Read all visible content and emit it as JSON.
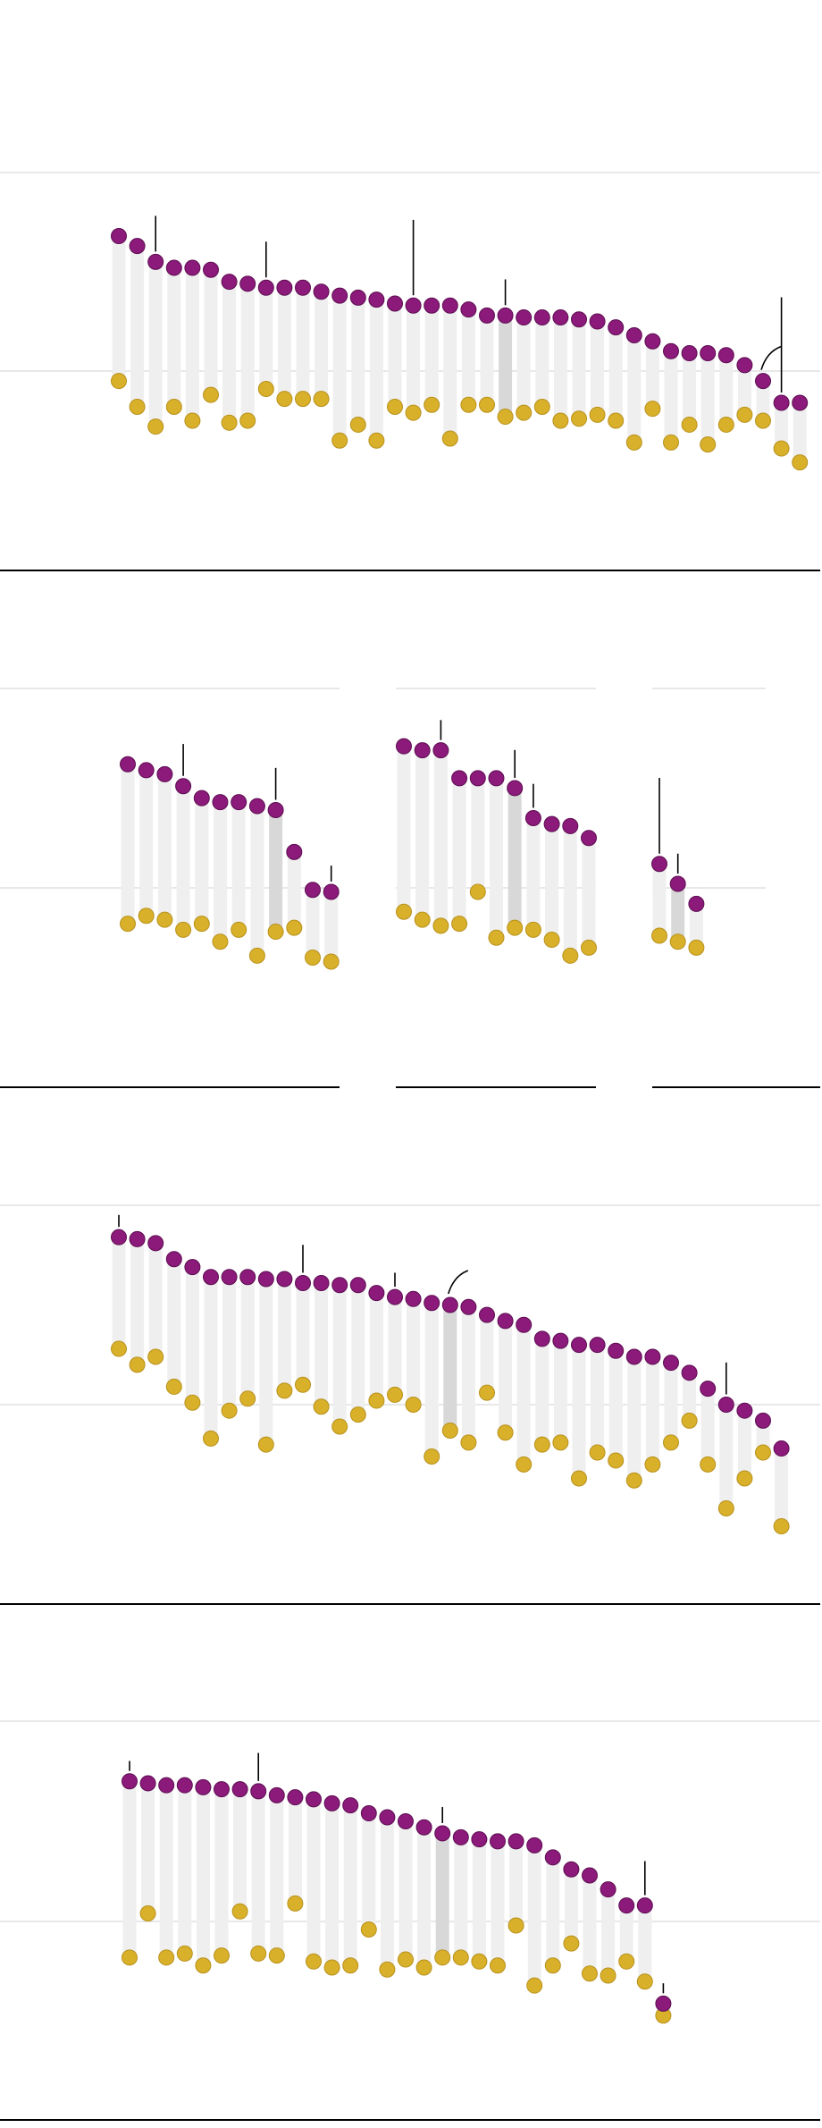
{
  "colors": {
    "purple": "#8b1a7a",
    "purple_stroke": "#5e0e52",
    "gold": "#d9b02a",
    "gold_stroke": "#b8921d",
    "bar": "#efefef",
    "bar_highlight": "#d8d8d8",
    "gridline": "#d0d0d0",
    "baseline": "#000000",
    "annotation": "#000000"
  },
  "chart_data": [
    {
      "type": "dot-pair",
      "title": "",
      "xlabel": "",
      "ylabel": "",
      "ylim": [
        -1,
        2
      ],
      "grid": true,
      "legend": "none",
      "highlight_index": 21,
      "series": [
        {
          "name": "",
          "color": "purple",
          "values": [
            1.68,
            1.63,
            1.55,
            1.52,
            1.52,
            1.51,
            1.45,
            1.44,
            1.42,
            1.42,
            1.42,
            1.4,
            1.38,
            1.37,
            1.36,
            1.34,
            1.33,
            1.33,
            1.33,
            1.31,
            1.28,
            1.28,
            1.27,
            1.27,
            1.27,
            1.26,
            1.25,
            1.22,
            1.18,
            1.15,
            1.1,
            1.09,
            1.09,
            1.08,
            1.03,
            0.95,
            0.84,
            0.84
          ]
        },
        {
          "name": "",
          "color": "gold",
          "values": [
            0.95,
            0.82,
            0.72,
            0.82,
            0.75,
            0.88,
            0.74,
            0.75,
            0.91,
            0.86,
            0.86,
            0.86,
            0.65,
            0.73,
            0.65,
            0.82,
            0.79,
            0.83,
            0.66,
            0.83,
            0.83,
            0.77,
            0.79,
            0.82,
            0.75,
            0.76,
            0.78,
            0.75,
            0.64,
            0.81,
            0.64,
            0.73,
            0.63,
            0.73,
            0.78,
            0.75,
            0.61,
            0.54
          ]
        }
      ],
      "annotations": [
        {
          "index": 2,
          "length": 0.18
        },
        {
          "index": 8,
          "length": 0.18
        },
        {
          "index": 16,
          "length": 0.38
        },
        {
          "index": 21,
          "length": 0.13
        },
        {
          "index": 36,
          "length": 0.48
        }
      ],
      "curved_note": {
        "index": 35
      }
    },
    {
      "type": "dot-pair",
      "title": "",
      "xlabel": "",
      "ylabel": "",
      "ylim": [
        -1,
        2
      ],
      "grid": true,
      "legend": "none",
      "highlight_index": 8,
      "series": [
        {
          "name": "",
          "color": "purple",
          "values": [
            1.62,
            1.59,
            1.57,
            1.51,
            1.45,
            1.43,
            1.43,
            1.41,
            1.39,
            1.18,
            0.99,
            0.98
          ]
        },
        {
          "name": "",
          "color": "gold",
          "values": [
            0.82,
            0.86,
            0.84,
            0.79,
            0.82,
            0.73,
            0.79,
            0.66,
            0.78,
            0.8,
            0.65,
            0.63
          ]
        }
      ],
      "annotations": [
        {
          "index": 3,
          "length": 0.16
        },
        {
          "index": 8,
          "length": 0.16
        },
        {
          "index": 11,
          "length": 0.08
        }
      ]
    },
    {
      "type": "dot-pair",
      "title": "",
      "xlabel": "",
      "ylabel": "",
      "ylim": [
        -1,
        2
      ],
      "grid": true,
      "legend": "none",
      "highlight_index": 6,
      "series": [
        {
          "name": "",
          "color": "purple",
          "values": [
            1.71,
            1.69,
            1.69,
            1.55,
            1.55,
            1.55,
            1.5,
            1.35,
            1.32,
            1.31,
            1.25
          ]
        },
        {
          "name": "",
          "color": "gold",
          "values": [
            0.88,
            0.84,
            0.81,
            0.82,
            0.98,
            0.75,
            0.8,
            0.79,
            0.74,
            0.66,
            0.7
          ]
        }
      ],
      "annotations": [
        {
          "index": 2,
          "length": 0.1
        },
        {
          "index": 6,
          "length": 0.14
        },
        {
          "index": 7,
          "length": 0.12
        }
      ]
    },
    {
      "type": "dot-pair",
      "title": "",
      "xlabel": "",
      "ylabel": "",
      "ylim": [
        -1,
        2
      ],
      "grid": true,
      "legend": "none",
      "highlight_index": 1,
      "series": [
        {
          "name": "",
          "color": "purple",
          "values": [
            1.12,
            1.02,
            0.92
          ]
        },
        {
          "name": "",
          "color": "gold",
          "values": [
            0.76,
            0.73,
            0.7
          ]
        }
      ],
      "annotations": [
        {
          "index": 0,
          "length": 0.38
        },
        {
          "index": 1,
          "length": 0.1
        }
      ]
    },
    {
      "type": "dot-pair",
      "title": "",
      "xlabel": "",
      "ylabel": "",
      "ylim": [
        -1,
        2
      ],
      "grid": true,
      "legend": "none",
      "highlight_index": 18,
      "series": [
        {
          "name": "",
          "color": "purple",
          "values": [
            1.84,
            1.83,
            1.81,
            1.73,
            1.69,
            1.64,
            1.64,
            1.64,
            1.63,
            1.63,
            1.61,
            1.61,
            1.6,
            1.6,
            1.56,
            1.54,
            1.53,
            1.51,
            1.5,
            1.49,
            1.45,
            1.42,
            1.4,
            1.33,
            1.32,
            1.3,
            1.3,
            1.27,
            1.24,
            1.24,
            1.21,
            1.16,
            1.08,
            1.0,
            0.97,
            0.92,
            0.78
          ]
        },
        {
          "name": "",
          "color": "gold",
          "values": [
            1.28,
            1.2,
            1.24,
            1.09,
            1.01,
            0.83,
            0.97,
            1.03,
            0.8,
            1.07,
            1.1,
            0.99,
            0.89,
            0.95,
            1.02,
            1.05,
            1.0,
            0.74,
            0.87,
            0.81,
            1.06,
            0.86,
            0.7,
            0.8,
            0.81,
            0.63,
            0.76,
            0.72,
            0.62,
            0.7,
            0.81,
            0.92,
            0.7,
            0.48,
            0.63,
            0.76,
            0.39
          ]
        }
      ],
      "annotations": [
        {
          "index": 0,
          "length": 0.06
        },
        {
          "index": 10,
          "length": 0.14
        },
        {
          "index": 15,
          "length": 0.07
        },
        {
          "index": 33,
          "length": 0.16
        }
      ],
      "curved_note": {
        "index": 18
      }
    },
    {
      "type": "dot-pair",
      "title": "",
      "xlabel": "",
      "ylabel": "",
      "ylim": [
        -1,
        2
      ],
      "grid": true,
      "legend": "none",
      "highlight_index": 17,
      "series": [
        {
          "name": "",
          "color": "purple",
          "values": [
            1.7,
            1.69,
            1.68,
            1.68,
            1.67,
            1.66,
            1.66,
            1.65,
            1.63,
            1.62,
            1.61,
            1.59,
            1.58,
            1.54,
            1.52,
            1.5,
            1.47,
            1.44,
            1.42,
            1.41,
            1.4,
            1.4,
            1.38,
            1.32,
            1.26,
            1.23,
            1.16,
            1.08,
            1.08,
            0.59
          ]
        },
        {
          "name": "",
          "color": "gold",
          "values": [
            0.82,
            1.04,
            0.82,
            0.84,
            0.78,
            0.83,
            1.05,
            0.84,
            0.83,
            1.09,
            0.8,
            0.77,
            0.78,
            0.96,
            0.76,
            0.81,
            0.77,
            0.82,
            0.82,
            0.8,
            0.78,
            0.98,
            0.68,
            0.78,
            0.89,
            0.74,
            0.73,
            0.8,
            0.7,
            0.53
          ]
        }
      ],
      "annotations": [
        {
          "index": 0,
          "length": 0.05
        },
        {
          "index": 7,
          "length": 0.14
        },
        {
          "index": 17,
          "length": 0.08
        },
        {
          "index": 28,
          "length": 0.17
        },
        {
          "index": 29,
          "length": 0.05
        }
      ]
    }
  ]
}
